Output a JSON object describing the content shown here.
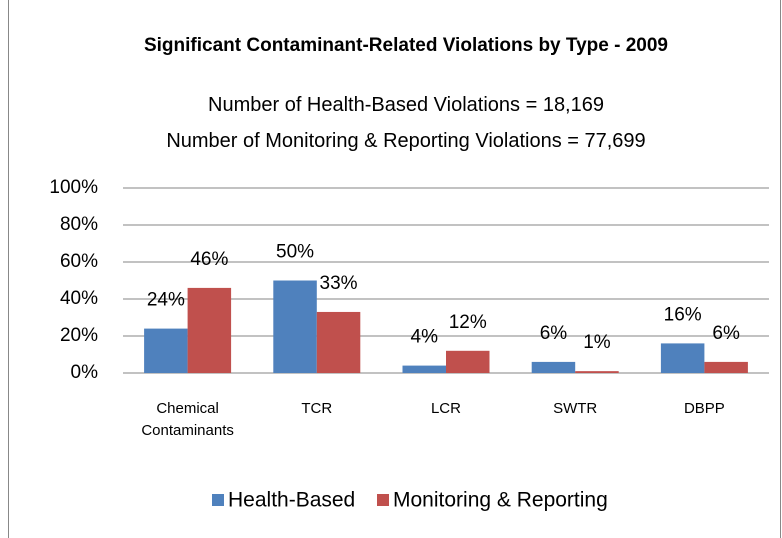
{
  "chart_data": {
    "type": "bar",
    "title": "Significant Contaminant-Related Violations by Type - 2009",
    "subtitle": [
      "Number of Health-Based Violations = 18,169",
      "Number of Monitoring & Reporting Violations = 77,699"
    ],
    "categories": [
      "Chemical Contaminants",
      "TCR",
      "LCR",
      "SWTR",
      "DBPP"
    ],
    "series": [
      {
        "name": "Health-Based",
        "color": "#4f81bd",
        "values": [
          24,
          50,
          4,
          6,
          16
        ],
        "value_labels": [
          "24%",
          "50%",
          "4%",
          "6%",
          "16%"
        ]
      },
      {
        "name": "Monitoring & Reporting",
        "color": "#c0504d",
        "values": [
          46,
          33,
          12,
          1,
          6
        ],
        "value_labels": [
          "46%",
          "33%",
          "12%",
          "1%",
          "6%"
        ]
      }
    ],
    "ylim": [
      0,
      100
    ],
    "yticks": [
      {
        "value": 0,
        "label": "0%"
      },
      {
        "value": 20,
        "label": "20%"
      },
      {
        "value": 40,
        "label": "40%"
      },
      {
        "value": 60,
        "label": "60%"
      },
      {
        "value": 80,
        "label": "80%"
      },
      {
        "value": 100,
        "label": "100%"
      }
    ],
    "grid": true,
    "legend": "bottom"
  }
}
